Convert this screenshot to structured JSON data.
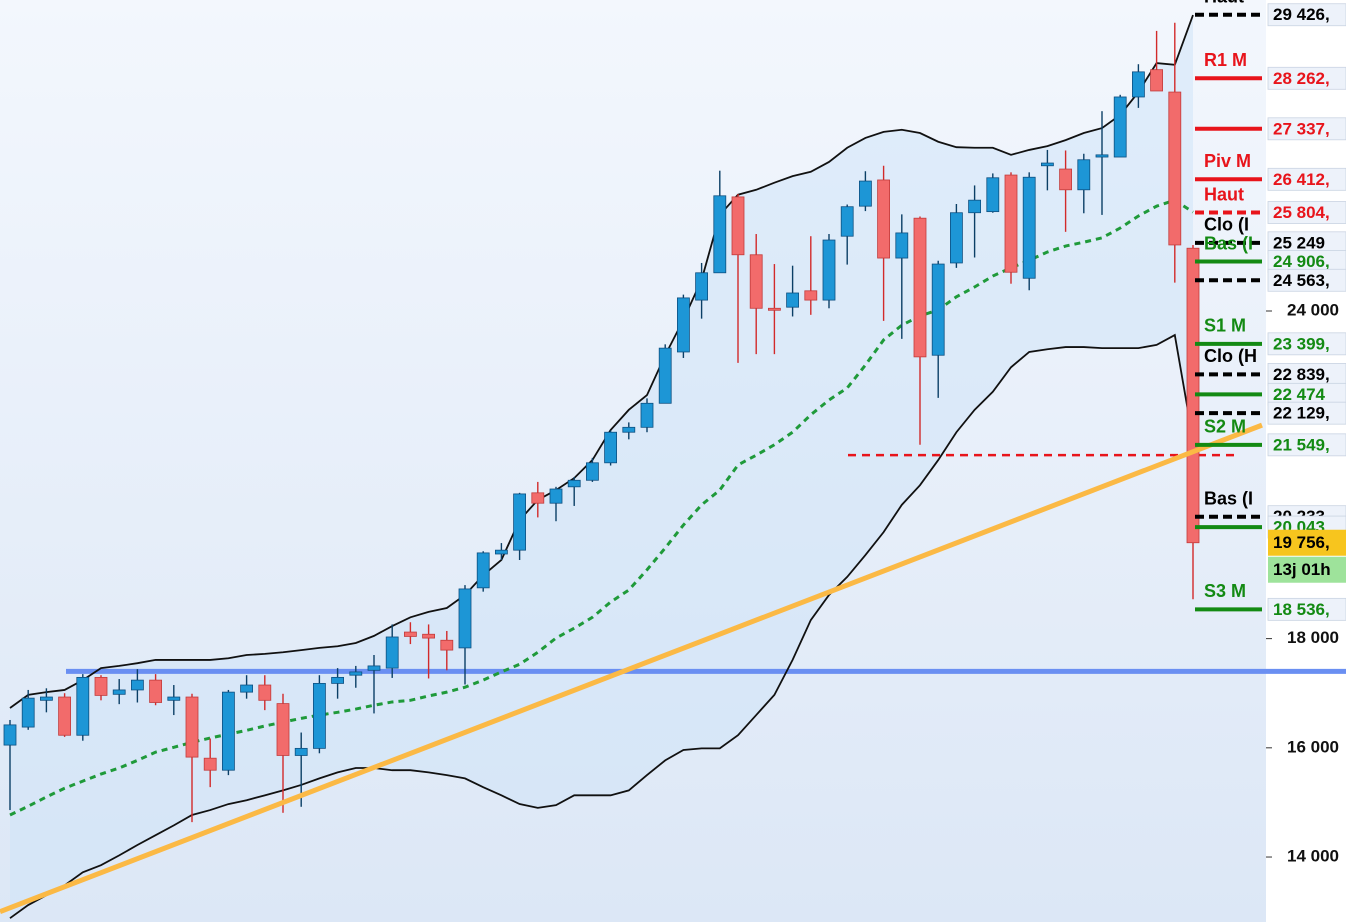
{
  "chart_data": {
    "type": "candlestick",
    "open": [
      16050,
      16380,
      16870,
      16930,
      16230,
      17290,
      16980,
      17060,
      17240,
      16870,
      16930,
      15810,
      15590,
      17020,
      17150,
      16810,
      15860,
      15990,
      17180,
      17330,
      17420,
      17460,
      18120,
      18080,
      17970,
      17830,
      18930,
      19550,
      19620,
      20670,
      20480,
      20780,
      20900,
      21220,
      21780,
      21870,
      22310,
      23250,
      24200,
      24700,
      26090,
      25030,
      24050,
      24070,
      24370,
      24200,
      25370,
      25920,
      26400,
      24970,
      25700,
      23190,
      24880,
      25800,
      25820,
      26490,
      24600,
      26660,
      26600,
      26220,
      26820,
      26820,
      27920,
      28420,
      28010,
      25150
    ],
    "high": [
      16510,
      17060,
      17090,
      17000,
      17350,
      17330,
      17260,
      17440,
      17350,
      17150,
      16990,
      16170,
      17060,
      17330,
      17330,
      16990,
      16280,
      17330,
      17460,
      17500,
      17700,
      18260,
      18300,
      18260,
      18140,
      18980,
      19600,
      19750,
      20670,
      20870,
      20780,
      20960,
      21310,
      21810,
      21960,
      22400,
      23390,
      24300,
      24880,
      26570,
      26140,
      25410,
      24860,
      24830,
      25370,
      25410,
      25950,
      26560,
      26660,
      25770,
      25730,
      24920,
      25960,
      26300,
      26520,
      26540,
      26540,
      26950,
      26940,
      26880,
      27660,
      27960,
      28520,
      29130,
      29280,
      25210
    ],
    "low": [
      14860,
      16330,
      16650,
      16200,
      16130,
      16870,
      16800,
      16830,
      16780,
      16600,
      14640,
      15280,
      15500,
      16900,
      16690,
      14810,
      14920,
      15900,
      16900,
      17100,
      16630,
      17280,
      17900,
      17270,
      17420,
      17160,
      18860,
      19440,
      19440,
      20220,
      20150,
      20430,
      20870,
      21170,
      21650,
      21780,
      22310,
      23140,
      23860,
      24700,
      23050,
      23210,
      23210,
      23900,
      23930,
      24050,
      24850,
      25830,
      23820,
      23490,
      21550,
      22410,
      24790,
      24980,
      25800,
      24500,
      24380,
      26210,
      25450,
      25790,
      25760,
      26820,
      27720,
      28030,
      24520,
      18720
    ],
    "close": [
      16420,
      16910,
      16930,
      16230,
      17290,
      16960,
      17060,
      17240,
      16830,
      16930,
      15830,
      15590,
      17020,
      17150,
      16870,
      15860,
      15990,
      17180,
      17290,
      17390,
      17500,
      18030,
      18040,
      18010,
      17790,
      18910,
      19570,
      19620,
      20650,
      20480,
      20740,
      20900,
      21220,
      21780,
      21870,
      22310,
      23320,
      24240,
      24700,
      26110,
      25030,
      24050,
      24020,
      24330,
      24200,
      25300,
      25910,
      26380,
      24970,
      25430,
      23160,
      24860,
      25800,
      26030,
      26440,
      24710,
      26450,
      26710,
      26220,
      26770,
      26860,
      27920,
      28380,
      28030,
      25210,
      19756
    ],
    "up_color": "#1d96d6",
    "down_color": "#f26b6b",
    "indicators": [
      {
        "color": "#111111",
        "style": "solid",
        "values": [
          16730,
          16970,
          17020,
          17060,
          17240,
          17460,
          17500,
          17550,
          17610,
          17610,
          17610,
          17610,
          17640,
          17700,
          17720,
          17750,
          17790,
          17830,
          17860,
          17920,
          18050,
          18230,
          18390,
          18490,
          18560,
          18800,
          19160,
          19440,
          20170,
          20540,
          20720,
          20940,
          21270,
          21820,
          22190,
          22460,
          23190,
          23840,
          24570,
          25760,
          26130,
          26220,
          26350,
          26470,
          26550,
          26730,
          26990,
          27170,
          27280,
          27320,
          27260,
          27100,
          27000,
          26990,
          26990,
          26860,
          26950,
          27020,
          27130,
          27260,
          27350,
          27590,
          28010,
          28540,
          28510,
          29420
        ]
      },
      {
        "color": "#1f9a3a",
        "style": "dashed",
        "values": [
          14770,
          14930,
          15100,
          15260,
          15390,
          15520,
          15630,
          15770,
          15920,
          16010,
          16100,
          16180,
          16250,
          16320,
          16400,
          16470,
          16540,
          16600,
          16650,
          16710,
          16780,
          16840,
          16870,
          16950,
          17020,
          17110,
          17240,
          17390,
          17530,
          17750,
          18010,
          18190,
          18390,
          18670,
          18890,
          19260,
          19660,
          20080,
          20450,
          20720,
          21180,
          21360,
          21550,
          21780,
          22100,
          22370,
          22590,
          23010,
          23470,
          23740,
          23910,
          24020,
          24260,
          24440,
          24640,
          24790,
          24930,
          25080,
          25190,
          25260,
          25340,
          25520,
          25740,
          25920,
          26030,
          25810
        ]
      },
      {
        "color": "#111111",
        "style": "solid",
        "values": [
          12880,
          13120,
          13300,
          13480,
          13720,
          13850,
          14030,
          14220,
          14400,
          14580,
          14770,
          14860,
          14970,
          15040,
          15130,
          15220,
          15320,
          15440,
          15550,
          15630,
          15630,
          15590,
          15590,
          15550,
          15500,
          15440,
          15280,
          15130,
          14970,
          14900,
          14950,
          15130,
          15130,
          15130,
          15220,
          15500,
          15770,
          15960,
          15990,
          15990,
          16230,
          16600,
          16970,
          17610,
          18340,
          18800,
          19130,
          19530,
          19950,
          20450,
          20810,
          21270,
          21780,
          22190,
          22520,
          22970,
          23250,
          23300,
          23340,
          23340,
          23320,
          23320,
          23320,
          23380,
          23560,
          21640
        ]
      }
    ],
    "band_fill": "#cfe3f8",
    "ylim": [
      12810,
      29696
    ],
    "yticks": [
      {
        "value": 14000,
        "label": "14 000"
      },
      {
        "value": 16000,
        "label": "16 000"
      },
      {
        "value": 18000,
        "label": "18 000"
      },
      {
        "value": 24000,
        "label": "24 000"
      }
    ],
    "horizontal_line": {
      "value": 17400,
      "color": "#6a8ff2"
    },
    "support_line": {
      "value": 21360,
      "color": "#e8141b"
    },
    "trendline": {
      "values": [
        13000,
        21910
      ],
      "color": "#fbb945"
    },
    "levels": [
      {
        "value": 29426,
        "label": "29 426,",
        "tag": "Haut",
        "color": "#000000",
        "style": "dashed"
      },
      {
        "value": 28262,
        "label": "28 262,",
        "tag": "R1 M",
        "color": "#e8141b",
        "style": "solid"
      },
      {
        "value": 27337,
        "label": "27 337,",
        "color": "#e8141b",
        "style": "solid"
      },
      {
        "value": 26412,
        "label": "26 412,",
        "tag": "Piv M",
        "color": "#e8141b",
        "style": "solid"
      },
      {
        "value": 25804,
        "label": "25 804,",
        "tag": "Haut",
        "color": "#e8141b",
        "style": "dashed"
      },
      {
        "value": 25249,
        "label": "25 249",
        "tag": "Clo (I",
        "color": "#000000",
        "style": "dashed"
      },
      {
        "value": 24906,
        "label": "24 906,",
        "tag": "Bas (I",
        "color": "#138a13",
        "style": "solid"
      },
      {
        "value": 24563,
        "label": "24 563,",
        "color": "#000000",
        "style": "dashed"
      },
      {
        "value": 23399,
        "label": "23 399,",
        "tag": "S1 M",
        "color": "#138a13",
        "style": "solid"
      },
      {
        "value": 22839,
        "label": "22 839,",
        "tag": "Clo (H",
        "color": "#000000",
        "style": "dashed"
      },
      {
        "value": 22474,
        "label": "22 474",
        "color": "#138a13",
        "style": "solid"
      },
      {
        "value": 22129,
        "label": "22 129,",
        "color": "#000000",
        "style": "dashed"
      },
      {
        "value": 21549,
        "label": "21 549,",
        "tag": "S2 M",
        "color": "#138a13",
        "style": "solid"
      },
      {
        "value": 20233,
        "label": "20 233",
        "tag": "Bas (I",
        "color": "#000000",
        "style": "dashed"
      },
      {
        "value": 20043,
        "label": "20 043,",
        "color": "#138a13",
        "style": "solid"
      },
      {
        "value": 18536,
        "label": "18 536,",
        "tag": "S3 M",
        "color": "#138a13",
        "style": "solid"
      }
    ],
    "current_price": {
      "value": 19756,
      "label": "19 756,",
      "color": "#f7c51e"
    },
    "countdown": {
      "label": "13j 01h",
      "color": "#9ee39b"
    }
  }
}
